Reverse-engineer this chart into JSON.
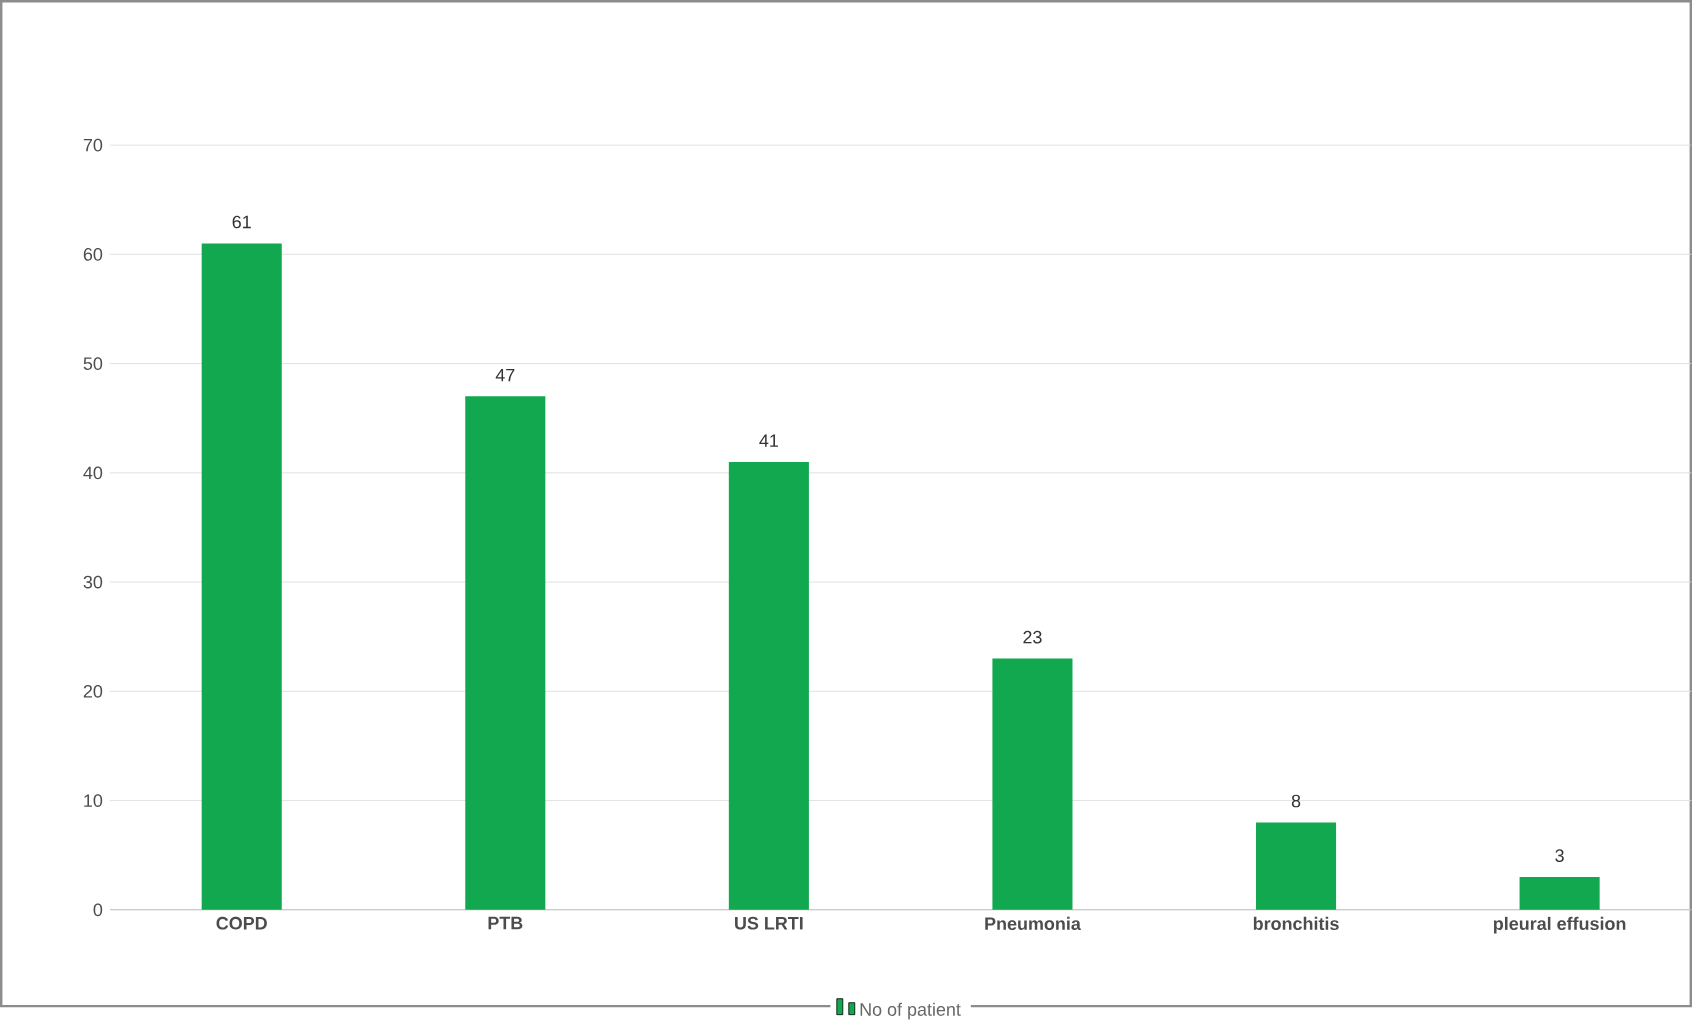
{
  "chart_data": {
    "type": "bar",
    "categories": [
      "COPD",
      "PTB",
      "US LRTI",
      "Pneumonia",
      "bronchitis",
      "pleural effusion"
    ],
    "series": [
      {
        "name": "No of patient",
        "color": "#11a84f",
        "values": [
          61,
          47,
          41,
          23,
          8,
          3
        ]
      }
    ],
    "ylim": [
      0,
      70
    ],
    "yticks": [
      0,
      10,
      20,
      30,
      40,
      50,
      60,
      70
    ],
    "grid": "y",
    "legend": "bottom",
    "data_labels": true
  }
}
